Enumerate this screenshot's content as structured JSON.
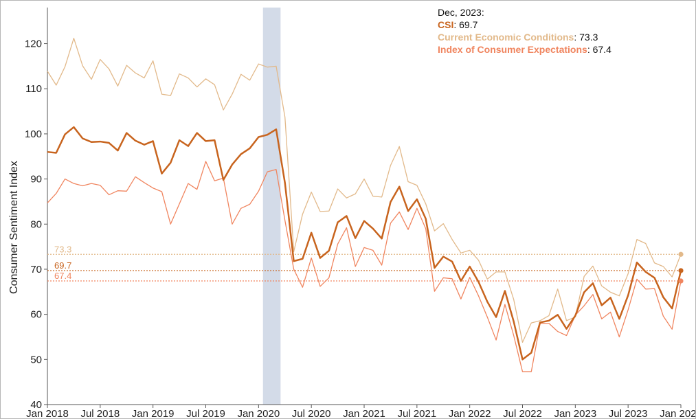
{
  "chart_data": {
    "type": "line",
    "ylabel": "Consumer Sentiment Index",
    "ylim": [
      40,
      128
    ],
    "yticks": [
      40,
      50,
      60,
      70,
      80,
      90,
      100,
      110,
      120
    ],
    "xtick_labels": [
      "Jan 2018",
      "Jul 2018",
      "Jan 2019",
      "Jul 2019",
      "Jan 2020",
      "Jul 2020",
      "Jan 2021",
      "Jul 2021",
      "Jan 2022",
      "Jul 2022",
      "Jan 2023",
      "Jul 2023",
      "Jan 2024"
    ],
    "x_start": "Jan 2018",
    "x_end": "Jan 2024",
    "shaded_period": {
      "start": "Feb 2020",
      "end": "Apr 2020"
    },
    "legend": {
      "title": "Dec, 2023:",
      "entries": [
        {
          "name": "CSI",
          "value": "69.7",
          "color": "#c8641e"
        },
        {
          "name": "Current Economic Conditions",
          "value": "73.3",
          "color": "#e2b98a"
        },
        {
          "name": "Index of Consumer Expectations",
          "value": "67.4",
          "color": "#f0855f"
        }
      ]
    },
    "reference_lines": [
      {
        "label": "73.3",
        "value": 73.3,
        "color": "#e2b98a"
      },
      {
        "label": "69.7",
        "value": 69.7,
        "color": "#c8641e"
      },
      {
        "label": "67.4",
        "value": 67.4,
        "color": "#f0855f"
      }
    ],
    "series": [
      {
        "name": "CSI",
        "color": "#c8641e",
        "width": 2.5,
        "values": [
          96.0,
          95.8,
          99.9,
          101.5,
          99.0,
          98.2,
          98.3,
          98.0,
          96.3,
          100.2,
          98.5,
          97.6,
          98.4,
          91.2,
          93.6,
          98.6,
          97.3,
          100.2,
          98.4,
          98.6,
          89.8,
          93.2,
          95.5,
          96.8,
          99.3,
          99.8,
          101.0,
          89.1,
          71.8,
          72.3,
          78.1,
          72.5,
          74.1,
          80.4,
          81.8,
          76.9,
          80.7,
          79.0,
          76.8,
          84.9,
          88.3,
          82.9,
          85.5,
          81.2,
          70.3,
          72.8,
          71.7,
          67.4,
          70.6,
          67.2,
          62.8,
          59.4,
          65.2,
          58.4,
          50.0,
          51.5,
          58.2,
          58.6,
          59.9,
          56.8,
          59.7,
          64.9,
          66.9,
          62.0,
          63.7,
          59.0,
          64.2,
          71.5,
          69.4,
          68.1,
          63.8,
          61.3,
          69.7
        ]
      },
      {
        "name": "Current Economic Conditions",
        "color": "#e2b98a",
        "width": 1.3,
        "values": [
          113.9,
          110.8,
          114.9,
          121.2,
          115.1,
          112.1,
          116.5,
          114.4,
          110.6,
          115.2,
          113.5,
          112.4,
          116.2,
          108.8,
          108.5,
          113.3,
          112.4,
          110.4,
          112.2,
          110.9,
          105.3,
          108.8,
          113.2,
          111.9,
          115.5,
          114.8,
          115.0,
          103.7,
          73.9,
          82.2,
          87.1,
          82.8,
          82.9,
          87.8,
          85.8,
          86.7,
          90.0,
          86.2,
          86.0,
          93.0,
          97.2,
          89.4,
          88.6,
          84.5,
          78.5,
          80.1,
          76.6,
          73.6,
          74.2,
          72.0,
          67.8,
          69.4,
          69.4,
          63.3,
          53.8,
          58.1,
          58.6,
          59.7,
          65.6,
          58.6,
          59.4,
          68.4,
          70.7,
          66.3,
          64.9,
          64.1,
          69.0,
          76.6,
          75.7,
          71.4,
          70.6,
          68.3,
          73.3
        ]
      },
      {
        "name": "Index of Consumer Expectations",
        "color": "#f0855f",
        "width": 1.3,
        "values": [
          84.7,
          86.8,
          90.0,
          89.0,
          88.5,
          89.0,
          88.6,
          86.5,
          87.4,
          87.3,
          90.5,
          89.2,
          88.0,
          87.2,
          80.0,
          84.5,
          89.0,
          87.7,
          93.9,
          89.6,
          90.2,
          80.0,
          83.5,
          84.4,
          87.3,
          91.6,
          92.1,
          80.8,
          70.0,
          66.0,
          72.5,
          66.2,
          68.1,
          75.6,
          79.2,
          70.6,
          74.8,
          74.2,
          70.9,
          80.2,
          82.7,
          78.8,
          83.5,
          79.0,
          65.1,
          68.1,
          67.9,
          63.4,
          68.2,
          64.1,
          59.4,
          54.3,
          62.2,
          55.3,
          47.3,
          47.3,
          58.0,
          58.0,
          56.2,
          55.3,
          59.8,
          61.9,
          64.4,
          59.0,
          60.5,
          55.0,
          61.0,
          67.8,
          65.6,
          65.7,
          59.6,
          56.7,
          67.4
        ]
      }
    ]
  }
}
